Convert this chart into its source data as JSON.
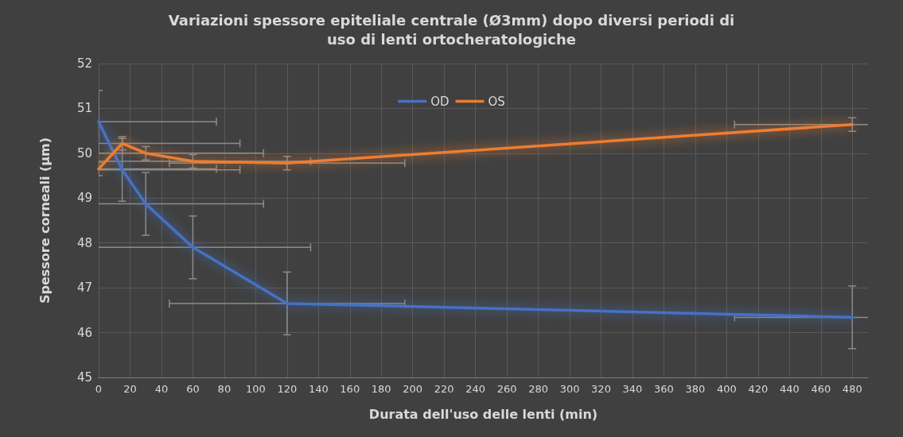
{
  "chart_data": {
    "type": "line",
    "title": "Variazioni spessore epiteliale centrale (Ø3mm) dopo diversi periodi di\nuso di lenti ortocheratologiche",
    "xlabel": "Durata dell'uso delle lenti (min)",
    "ylabel": "Spessore corneali (µm)",
    "x": [
      0,
      15,
      30,
      60,
      120,
      480
    ],
    "series": [
      {
        "name": "OD",
        "color": "#4472c4",
        "values": [
          50.7,
          49.63,
          48.87,
          47.9,
          46.65,
          46.34
        ],
        "errors": [
          0.7,
          0.7,
          0.7,
          0.7,
          0.7,
          0.7
        ],
        "xerrors": [
          75,
          75,
          75,
          75,
          75,
          75
        ]
      },
      {
        "name": "OS",
        "color": "#ed7d31",
        "values": [
          49.65,
          50.22,
          50.0,
          49.82,
          49.78,
          50.64
        ],
        "errors": [
          0.15,
          0.15,
          0.15,
          0.15,
          0.15,
          0.15
        ],
        "xerrors": [
          75,
          75,
          75,
          75,
          75,
          75
        ]
      }
    ],
    "xlim": [
      0,
      490
    ],
    "xticks": [
      0,
      20,
      40,
      60,
      80,
      100,
      120,
      140,
      160,
      180,
      200,
      220,
      240,
      260,
      280,
      300,
      320,
      340,
      360,
      380,
      400,
      420,
      440,
      460,
      480
    ],
    "ylim": [
      45,
      52
    ],
    "yticks": [
      45,
      46,
      47,
      48,
      49,
      50,
      51,
      52
    ],
    "grid": true,
    "legend": "top",
    "marker": "none",
    "line_style": "solid"
  }
}
